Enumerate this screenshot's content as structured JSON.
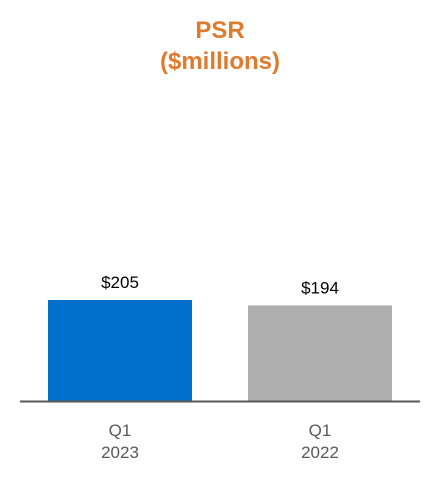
{
  "chart_data": {
    "type": "bar",
    "title": "PSR",
    "subtitle": "($millions)",
    "title_color": "#E07B2E",
    "categories": [
      [
        "Q1",
        "2023"
      ],
      [
        "Q1",
        "2022"
      ]
    ],
    "values": [
      205,
      194
    ],
    "value_labels": [
      "$205",
      "$194"
    ],
    "bar_colors": [
      "#0070CC",
      "#AEAEAE"
    ],
    "axis_color": "#595959",
    "xlabel": "",
    "ylabel": "",
    "ylim": [
      0,
      205
    ],
    "grid": false,
    "legend": "none"
  }
}
